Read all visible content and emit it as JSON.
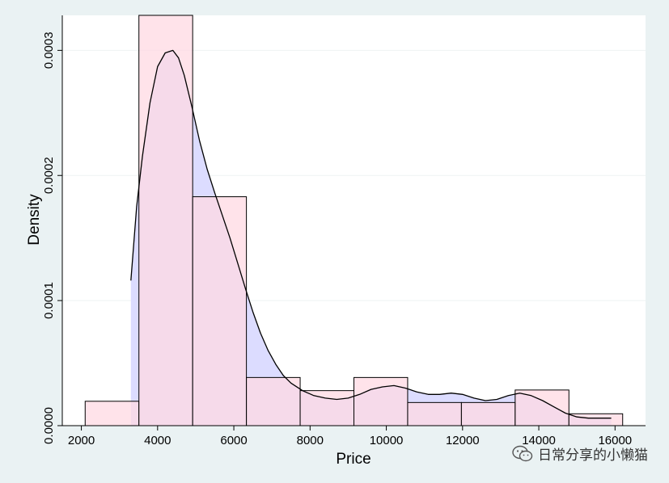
{
  "chart_data": {
    "type": "bar",
    "title": "",
    "xlabel": "Price",
    "ylabel": "Density",
    "xlim": [
      1500,
      16800
    ],
    "ylim": [
      0,
      0.000328
    ],
    "x_ticks": [
      2000,
      4000,
      6000,
      8000,
      10000,
      12000,
      14000,
      16000
    ],
    "x_tick_labels": [
      "2000",
      "4000",
      "6000",
      "8000",
      "10000",
      "12000",
      "14000",
      "16000"
    ],
    "y_ticks": [
      0,
      0.0001,
      0.0002,
      0.0003
    ],
    "y_tick_labels": [
      "0.0000",
      "0.0001",
      "0.0002",
      "0.0003"
    ],
    "grid": "horizontal",
    "histogram": {
      "bin_edges": [
        2100,
        3510,
        4920,
        6330,
        7740,
        9150,
        10560,
        11970,
        13380,
        14790,
        16200
      ],
      "values": [
        1.95e-05,
        0.000328,
        0.000183,
        3.85e-05,
        2.8e-05,
        3.85e-05,
        1.85e-05,
        1.85e-05,
        2.85e-05,
        9.5e-06
      ],
      "fill_color": "#ffd9e3",
      "overlay_fill": "#d9b8e6",
      "edge_color": "#000000"
    },
    "density_curve": {
      "x": [
        3300,
        3450,
        3600,
        3800,
        4000,
        4200,
        4400,
        4550,
        4700,
        4900,
        5100,
        5300,
        5500,
        5700,
        5900,
        6100,
        6300,
        6500,
        6700,
        6900,
        7100,
        7300,
        7500,
        7800,
        8100,
        8400,
        8700,
        9000,
        9300,
        9600,
        9900,
        10200,
        10500,
        10800,
        11100,
        11400,
        11700,
        12000,
        12300,
        12600,
        12900,
        13200,
        13500,
        13800,
        14100,
        14400,
        14700,
        15000,
        15300,
        15600,
        15900
      ],
      "y": [
        0.000116,
        0.000175,
        0.000215,
        0.000258,
        0.000287,
        0.000298,
        0.0003,
        0.000294,
        0.00028,
        0.000255,
        0.000228,
        0.000205,
        0.000186,
        0.000168,
        0.00015,
        0.00013,
        0.00011,
        9.1e-05,
        7.4e-05,
        6e-05,
        4.9e-05,
        4e-05,
        3.4e-05,
        2.8e-05,
        2.4e-05,
        2.2e-05,
        2.1e-05,
        2.2e-05,
        2.5e-05,
        2.9e-05,
        3.1e-05,
        3.2e-05,
        3e-05,
        2.7e-05,
        2.5e-05,
        2.5e-05,
        2.6e-05,
        2.5e-05,
        2.2e-05,
        2e-05,
        2.1e-05,
        2.4e-05,
        2.6e-05,
        2.4e-05,
        2e-05,
        1.5e-05,
        1e-05,
        7e-06,
        6e-06,
        6e-06,
        6e-06
      ],
      "fill_color": "#dcdcff",
      "line_color": "#000000"
    }
  },
  "watermark": {
    "text": "日常分享的小懒猫",
    "icon": "wechat-icon"
  }
}
